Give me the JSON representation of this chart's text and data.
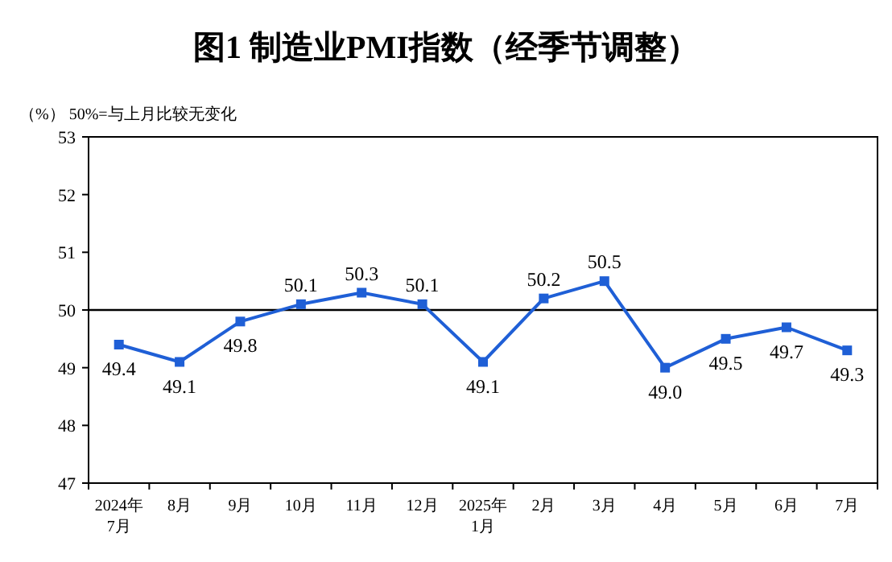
{
  "chart_data": {
    "type": "line",
    "title": "图1  制造业PMI指数（经季节调整）",
    "subtitle": "（%）  50%=与上月比较无变化",
    "categories": [
      "2024年\n7月",
      "8月",
      "9月",
      "10月",
      "11月",
      "12月",
      "2025年\n1月",
      "2月",
      "3月",
      "4月",
      "5月",
      "6月",
      "7月"
    ],
    "series": [
      {
        "color": "#1f5fd6",
        "values": [
          49.4,
          49.1,
          49.8,
          50.1,
          50.3,
          50.1,
          49.1,
          50.2,
          50.5,
          49.0,
          49.5,
          49.7,
          49.3
        ],
        "value_labels": [
          "49.4",
          "49.1",
          "49.8",
          "50.1",
          "50.3",
          "50.1",
          "49.1",
          "50.2",
          "50.5",
          "49.0",
          "49.5",
          "49.7",
          "49.3"
        ]
      }
    ],
    "ylim": [
      47,
      53
    ],
    "yticks": [
      47,
      48,
      49,
      50,
      51,
      52,
      53
    ],
    "ref_lines": [
      {
        "axis": "y",
        "value": 50,
        "color": "#000000"
      }
    ],
    "marker": "square",
    "line_style": "solid",
    "grid": false
  }
}
